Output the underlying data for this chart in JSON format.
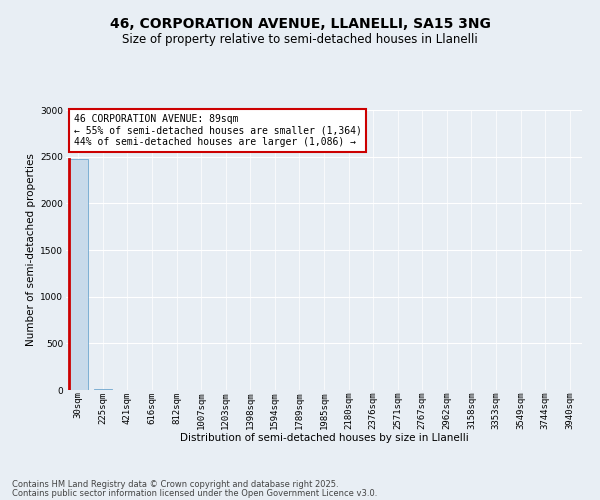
{
  "title_line1": "46, CORPORATION AVENUE, LLANELLI, SA15 3NG",
  "title_line2": "Size of property relative to semi-detached houses in Llanelli",
  "xlabel": "Distribution of semi-detached houses by size in Llanelli",
  "ylabel": "Number of semi-detached properties",
  "categories": [
    "30sqm",
    "225sqm",
    "421sqm",
    "616sqm",
    "812sqm",
    "1007sqm",
    "1203sqm",
    "1398sqm",
    "1594sqm",
    "1789sqm",
    "1985sqm",
    "2180sqm",
    "2376sqm",
    "2571sqm",
    "2767sqm",
    "2962sqm",
    "3158sqm",
    "3353sqm",
    "3549sqm",
    "3744sqm",
    "3940sqm"
  ],
  "values": [
    2480,
    10,
    5,
    3,
    2,
    2,
    1,
    1,
    1,
    1,
    2,
    1,
    1,
    1,
    1,
    1,
    1,
    1,
    1,
    1,
    1
  ],
  "bar_color": "#c8daea",
  "bar_edge_color": "#5a9ac8",
  "highlight_bar_index": 0,
  "highlight_left_edge_color": "#cc0000",
  "annotation_title": "46 CORPORATION AVENUE: 89sqm",
  "annotation_line2": "← 55% of semi-detached houses are smaller (1,364)",
  "annotation_line3": "44% of semi-detached houses are larger (1,086) →",
  "annotation_box_color": "#ffffff",
  "annotation_border_color": "#cc0000",
  "ylim": [
    0,
    3000
  ],
  "yticks": [
    0,
    500,
    1000,
    1500,
    2000,
    2500,
    3000
  ],
  "background_color": "#e8eef4",
  "plot_background_color": "#e8eef4",
  "footer_line1": "Contains HM Land Registry data © Crown copyright and database right 2025.",
  "footer_line2": "Contains public sector information licensed under the Open Government Licence v3.0.",
  "title_fontsize": 10,
  "subtitle_fontsize": 8.5,
  "tick_fontsize": 6.5,
  "ylabel_fontsize": 7.5,
  "xlabel_fontsize": 7.5,
  "annotation_fontsize": 7,
  "footer_fontsize": 6
}
